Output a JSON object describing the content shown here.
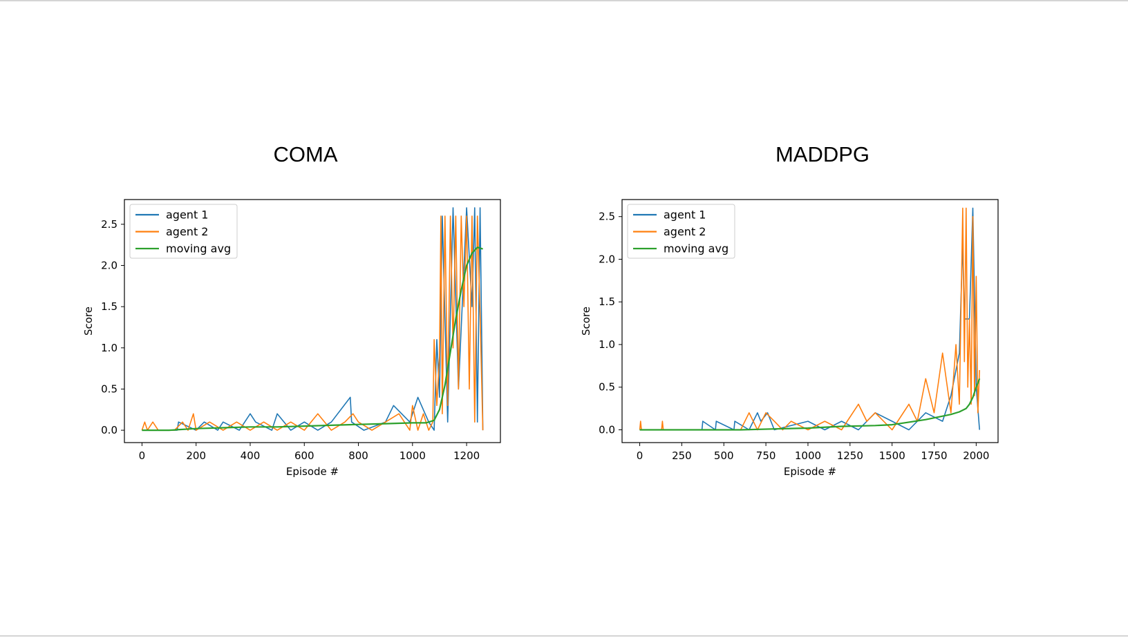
{
  "slide": {
    "left_title": "COMA",
    "right_title": "MADDPG"
  },
  "colors": {
    "agent1": "#1f77b4",
    "agent2": "#ff7f0e",
    "moving_avg": "#2ca02c",
    "axes": "#000000"
  },
  "chart_data": [
    {
      "type": "line",
      "title": "COMA",
      "xlabel": "Episode #",
      "ylabel": "Score",
      "xlim": [
        -65,
        1325
      ],
      "ylim": [
        -0.15,
        2.8
      ],
      "xticks": [
        0,
        200,
        400,
        600,
        800,
        1000,
        1200
      ],
      "yticks": [
        0.0,
        0.5,
        1.0,
        1.5,
        2.0,
        2.5
      ],
      "xtick_labels": [
        "0",
        "200",
        "400",
        "600",
        "800",
        "1000",
        "1200"
      ],
      "ytick_labels": [
        "0.0",
        "0.5",
        "1.0",
        "1.5",
        "2.0",
        "2.5"
      ],
      "legend": {
        "position": "upper-left"
      },
      "series": [
        {
          "name": "agent 1",
          "x": [
            0,
            50,
            130,
            135,
            200,
            230,
            280,
            300,
            360,
            400,
            420,
            480,
            500,
            550,
            600,
            650,
            700,
            770,
            775,
            820,
            900,
            930,
            990,
            1020,
            1060,
            1080,
            1090,
            1100,
            1110,
            1130,
            1150,
            1170,
            1200,
            1220,
            1230,
            1240,
            1250,
            1260
          ],
          "y": [
            0.0,
            0.0,
            0.0,
            0.1,
            0.0,
            0.1,
            0.0,
            0.1,
            0.0,
            0.2,
            0.1,
            0.0,
            0.2,
            0.0,
            0.1,
            0.0,
            0.1,
            0.4,
            0.1,
            0.0,
            0.1,
            0.3,
            0.1,
            0.4,
            0.1,
            0.0,
            1.1,
            0.4,
            2.6,
            0.1,
            2.7,
            0.5,
            2.7,
            1.5,
            2.7,
            0.1,
            2.7,
            0.0
          ]
        },
        {
          "name": "agent 2",
          "x": [
            0,
            10,
            20,
            40,
            60,
            120,
            150,
            170,
            190,
            200,
            250,
            300,
            350,
            400,
            450,
            500,
            550,
            600,
            650,
            700,
            750,
            780,
            800,
            850,
            900,
            950,
            990,
            1000,
            1020,
            1040,
            1060,
            1075,
            1080,
            1090,
            1100,
            1105,
            1110,
            1120,
            1130,
            1140,
            1150,
            1160,
            1170,
            1180,
            1190,
            1200,
            1210,
            1220,
            1230,
            1240,
            1250,
            1260
          ],
          "y": [
            0.0,
            0.1,
            0.0,
            0.1,
            0.0,
            0.0,
            0.1,
            0.0,
            0.2,
            0.0,
            0.1,
            0.0,
            0.1,
            0.0,
            0.1,
            0.0,
            0.1,
            0.0,
            0.2,
            0.0,
            0.1,
            0.2,
            0.1,
            0.0,
            0.1,
            0.2,
            0.0,
            0.3,
            0.0,
            0.2,
            0.0,
            0.1,
            1.1,
            0.3,
            0.9,
            2.6,
            0.2,
            2.6,
            0.3,
            2.6,
            1.0,
            2.6,
            0.5,
            2.6,
            1.5,
            2.6,
            0.5,
            2.6,
            0.1,
            2.6,
            1.4,
            0.0
          ]
        },
        {
          "name": "moving avg",
          "x": [
            0,
            100,
            200,
            300,
            400,
            500,
            600,
            700,
            800,
            900,
            1000,
            1050,
            1080,
            1100,
            1120,
            1140,
            1160,
            1180,
            1200,
            1220,
            1240,
            1260
          ],
          "y": [
            0.0,
            0.0,
            0.02,
            0.03,
            0.04,
            0.04,
            0.05,
            0.06,
            0.07,
            0.08,
            0.09,
            0.09,
            0.12,
            0.25,
            0.55,
            0.95,
            1.35,
            1.7,
            2.0,
            2.15,
            2.22,
            2.2
          ]
        }
      ]
    },
    {
      "type": "line",
      "title": "MADDPG",
      "xlabel": "Episode #",
      "ylabel": "Score",
      "xlim": [
        -105,
        2130
      ],
      "ylim": [
        -0.15,
        2.7
      ],
      "xticks": [
        0,
        250,
        500,
        750,
        1000,
        1250,
        1500,
        1750,
        2000
      ],
      "yticks": [
        0.0,
        0.5,
        1.0,
        1.5,
        2.0,
        2.5
      ],
      "xtick_labels": [
        "0",
        "250",
        "500",
        "750",
        "1000",
        "1250",
        "1500",
        "1750",
        "2000"
      ],
      "ytick_labels": [
        "0.0",
        "0.5",
        "1.0",
        "1.5",
        "2.0",
        "2.5"
      ],
      "legend": {
        "position": "upper-left"
      },
      "series": [
        {
          "name": "agent 1",
          "x": [
            0,
            100,
            370,
            375,
            450,
            455,
            560,
            565,
            650,
            700,
            720,
            760,
            800,
            1000,
            1100,
            1200,
            1300,
            1400,
            1500,
            1600,
            1700,
            1800,
            1850,
            1900,
            1920,
            1930,
            1960,
            1980,
            2000,
            2020
          ],
          "y": [
            0.0,
            0.0,
            0.0,
            0.1,
            0.0,
            0.1,
            0.0,
            0.1,
            0.0,
            0.2,
            0.1,
            0.2,
            0.0,
            0.1,
            0.0,
            0.1,
            0.0,
            0.2,
            0.1,
            0.0,
            0.2,
            0.1,
            0.4,
            0.9,
            2.2,
            1.3,
            1.3,
            2.6,
            0.5,
            0.0
          ]
        },
        {
          "name": "agent 2",
          "x": [
            0,
            5,
            10,
            130,
            135,
            140,
            300,
            600,
            650,
            700,
            750,
            800,
            850,
            900,
            1000,
            1100,
            1200,
            1300,
            1350,
            1400,
            1500,
            1600,
            1650,
            1700,
            1750,
            1800,
            1850,
            1880,
            1900,
            1920,
            1930,
            1940,
            1950,
            1960,
            1970,
            1980,
            1990,
            2000,
            2010,
            2020
          ],
          "y": [
            0.0,
            0.1,
            0.0,
            0.0,
            0.1,
            0.0,
            0.0,
            0.0,
            0.2,
            0.0,
            0.2,
            0.1,
            0.0,
            0.1,
            0.0,
            0.1,
            0.0,
            0.3,
            0.1,
            0.2,
            0.0,
            0.3,
            0.1,
            0.6,
            0.2,
            0.9,
            0.2,
            1.0,
            0.3,
            2.6,
            0.8,
            2.6,
            0.5,
            1.3,
            0.3,
            2.5,
            0.4,
            1.8,
            0.2,
            0.7
          ]
        },
        {
          "name": "moving avg",
          "x": [
            0,
            200,
            400,
            600,
            800,
            1000,
            1200,
            1400,
            1500,
            1600,
            1700,
            1750,
            1800,
            1850,
            1900,
            1940,
            1960,
            1980,
            2000,
            2020
          ],
          "y": [
            0.0,
            0.0,
            0.0,
            0.0,
            0.01,
            0.02,
            0.04,
            0.05,
            0.06,
            0.09,
            0.12,
            0.14,
            0.16,
            0.18,
            0.21,
            0.25,
            0.3,
            0.38,
            0.5,
            0.6
          ]
        }
      ]
    }
  ]
}
